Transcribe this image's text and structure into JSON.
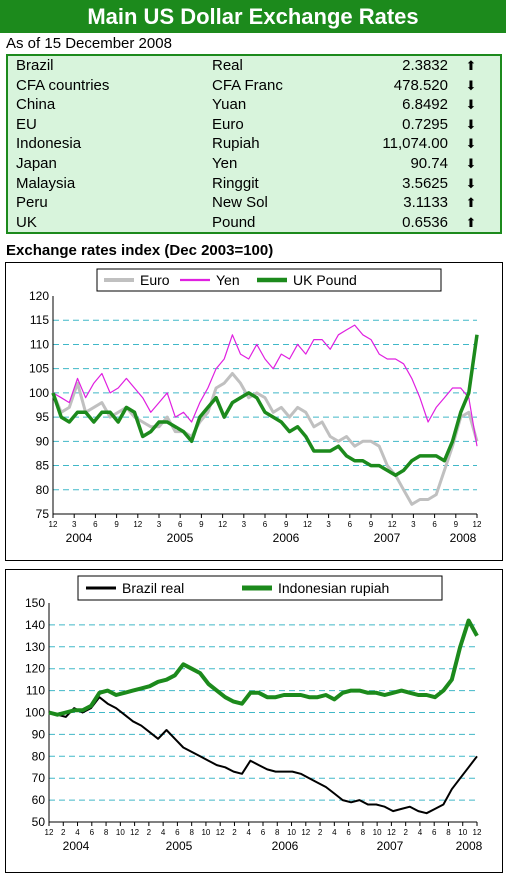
{
  "title": "Main US Dollar Exchange Rates",
  "as_of": "As of 15 December 2008",
  "rates": [
    {
      "country": "Brazil",
      "currency": "Real",
      "value": "2.3832",
      "direction": "up"
    },
    {
      "country": "CFA countries",
      "currency": "CFA Franc",
      "value": "478.520",
      "direction": "down"
    },
    {
      "country": "China",
      "currency": "Yuan",
      "value": "6.8492",
      "direction": "down"
    },
    {
      "country": "EU",
      "currency": "Euro",
      "value": "0.7295",
      "direction": "down"
    },
    {
      "country": "Indonesia",
      "currency": "Rupiah",
      "value": "11,074.00",
      "direction": "down"
    },
    {
      "country": "Japan",
      "currency": "Yen",
      "value": "90.74",
      "direction": "down"
    },
    {
      "country": "Malaysia",
      "currency": "Ringgit",
      "value": "3.5625",
      "direction": "down"
    },
    {
      "country": "Peru",
      "currency": "New Sol",
      "value": "3.1133",
      "direction": "up"
    },
    {
      "country": "UK",
      "currency": "Pound",
      "value": "0.6536",
      "direction": "up"
    }
  ],
  "index_heading": "Exchange rates index (Dec 2003=100)",
  "colors": {
    "title_bg": "#1c8a1c",
    "table_bg": "#d8f4dc",
    "euro": "#c0c0c0",
    "yen": "#e020e0",
    "pound": "#1c8a1c",
    "real": "#000000",
    "rupiah": "#1c8a1c",
    "grid": "#40b8c8"
  },
  "chart_data": [
    {
      "type": "line",
      "x_tick_labels": [
        "12",
        "3",
        "6",
        "9",
        "12",
        "3",
        "6",
        "9",
        "12",
        "3",
        "6",
        "9",
        "12",
        "3",
        "6",
        "9",
        "12",
        "3",
        "6",
        "9",
        "12"
      ],
      "year_labels": [
        "2004",
        "2005",
        "2006",
        "2007",
        "2008"
      ],
      "ylim": [
        75,
        120
      ],
      "yticks": [
        75,
        80,
        85,
        90,
        95,
        100,
        105,
        110,
        115,
        120
      ],
      "legend": "top",
      "series": [
        {
          "name": "Euro",
          "color": "#c0c0c0",
          "values": [
            100,
            96,
            97,
            102,
            96,
            97,
            98,
            95,
            96,
            97,
            95,
            94,
            93,
            93,
            95,
            92,
            92,
            91,
            94,
            96,
            101,
            102,
            104,
            102,
            99,
            100,
            99,
            96,
            97,
            95,
            97,
            96,
            93,
            94,
            91,
            90,
            91,
            89,
            90,
            90,
            89,
            85,
            83,
            80,
            77,
            78,
            78,
            79,
            84,
            89,
            95,
            96,
            90
          ]
        },
        {
          "name": "Yen",
          "color": "#e020e0",
          "values": [
            100,
            99,
            98,
            103,
            99,
            102,
            104,
            100,
            101,
            103,
            101,
            99,
            96,
            98,
            100,
            95,
            96,
            94,
            98,
            101,
            105,
            107,
            112,
            108,
            107,
            110,
            107,
            105,
            108,
            107,
            110,
            108,
            111,
            111,
            109,
            112,
            113,
            114,
            112,
            111,
            108,
            107,
            107,
            106,
            103,
            99,
            94,
            97,
            99,
            101,
            101,
            99,
            89
          ]
        },
        {
          "name": "UK Pound",
          "color": "#1c8a1c",
          "values": [
            100,
            95,
            94,
            96,
            96,
            94,
            96,
            96,
            94,
            97,
            96,
            91,
            92,
            94,
            94,
            93,
            92,
            90,
            95,
            97,
            99,
            95,
            98,
            99,
            100,
            99,
            96,
            95,
            94,
            92,
            93,
            91,
            88,
            88,
            88,
            89,
            87,
            86,
            86,
            85,
            85,
            84,
            83,
            84,
            86,
            87,
            87,
            87,
            86,
            90,
            96,
            100,
            112
          ]
        }
      ]
    },
    {
      "type": "line",
      "x_tick_labels": [
        "12",
        "2",
        "4",
        "6",
        "8",
        "10",
        "12",
        "2",
        "4",
        "6",
        "8",
        "10",
        "12",
        "2",
        "4",
        "6",
        "8",
        "10",
        "12",
        "2",
        "4",
        "6",
        "8",
        "10",
        "12",
        "2",
        "4",
        "6",
        "8",
        "10",
        "12"
      ],
      "year_labels": [
        "2004",
        "2005",
        "2006",
        "2007",
        "2008"
      ],
      "ylim": [
        50,
        150
      ],
      "yticks": [
        50,
        60,
        70,
        80,
        90,
        100,
        110,
        120,
        130,
        140,
        150
      ],
      "legend": "top",
      "series": [
        {
          "name": "Brazil real",
          "color": "#000000",
          "values": [
            100,
            99,
            98,
            102,
            100,
            102,
            107,
            104,
            102,
            99,
            96,
            94,
            91,
            88,
            92,
            88,
            84,
            82,
            80,
            78,
            76,
            75,
            73,
            72,
            78,
            76,
            74,
            73,
            73,
            73,
            72,
            70,
            68,
            66,
            63,
            60,
            59,
            60,
            58,
            58,
            57,
            55,
            56,
            57,
            55,
            54,
            56,
            58,
            65,
            70,
            75,
            80
          ]
        },
        {
          "name": "Indonesian rupiah",
          "color": "#1c8a1c",
          "values": [
            100,
            99,
            100,
            101,
            101,
            103,
            109,
            110,
            108,
            109,
            110,
            111,
            112,
            114,
            115,
            117,
            122,
            120,
            118,
            113,
            110,
            107,
            105,
            104,
            109,
            109,
            107,
            107,
            108,
            108,
            108,
            107,
            107,
            108,
            106,
            109,
            110,
            110,
            109,
            109,
            108,
            109,
            110,
            109,
            108,
            108,
            107,
            110,
            115,
            130,
            142,
            135
          ]
        }
      ]
    }
  ]
}
